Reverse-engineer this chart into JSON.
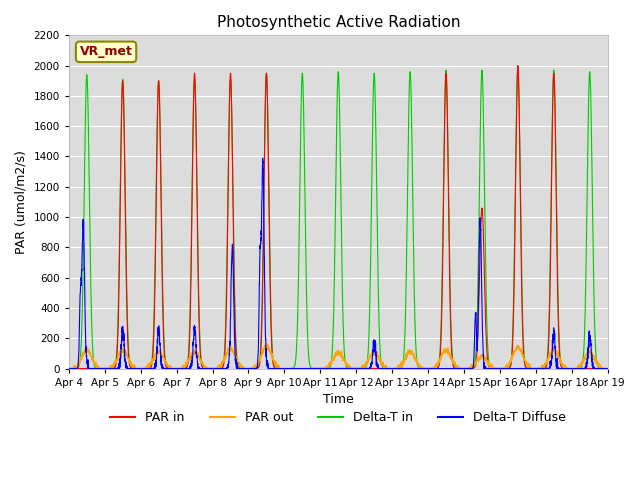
{
  "title": "Photosynthetic Active Radiation",
  "ylabel": "PAR (umol/m2/s)",
  "xlabel": "Time",
  "ylim": [
    0,
    2200
  ],
  "yticks": [
    0,
    200,
    400,
    600,
    800,
    1000,
    1200,
    1400,
    1600,
    1800,
    2000,
    2200
  ],
  "xtick_labels": [
    "Apr 4",
    "Apr 5",
    "Apr 6",
    "Apr 7",
    "Apr 8",
    "Apr 9",
    "Apr 10",
    "Apr 11",
    "Apr 12",
    "Apr 13",
    "Apr 14",
    "Apr 15",
    "Apr 16",
    "Apr 17",
    "Apr 18",
    "Apr 19"
  ],
  "colors": {
    "par_in": "#ff0000",
    "par_out": "#ffa500",
    "delta_t_in": "#00cc00",
    "delta_t_diffuse": "#0000ff"
  },
  "background_color": "#dcdcdc",
  "legend_labels": [
    "PAR in",
    "PAR out",
    "Delta-T in",
    "Delta-T Diffuse"
  ],
  "watermark_text": "VR_met",
  "watermark_bg": "#ffffcc",
  "watermark_border": "#888800",
  "green_peaks": [
    1940,
    1910,
    1900,
    1910,
    1910,
    1950,
    1950,
    1960,
    1950,
    1960,
    1970,
    1970,
    1980,
    1970,
    1960
  ],
  "red_peaks": [
    0,
    1900,
    1900,
    1950,
    1950,
    1950,
    0,
    0,
    0,
    0,
    1950,
    1060,
    2000,
    1950,
    0
  ],
  "orange_peaks": [
    120,
    120,
    110,
    110,
    130,
    150,
    0,
    105,
    110,
    110,
    120,
    80,
    140,
    120,
    110
  ],
  "blue_peaks": [
    750,
    200,
    200,
    210,
    620,
    1050,
    0,
    0,
    140,
    0,
    0,
    760,
    0,
    180,
    170
  ],
  "blue_early_peaks": [
    400,
    0,
    0,
    0,
    0,
    600,
    0,
    0,
    0,
    0,
    0,
    350,
    0,
    0,
    0
  ]
}
